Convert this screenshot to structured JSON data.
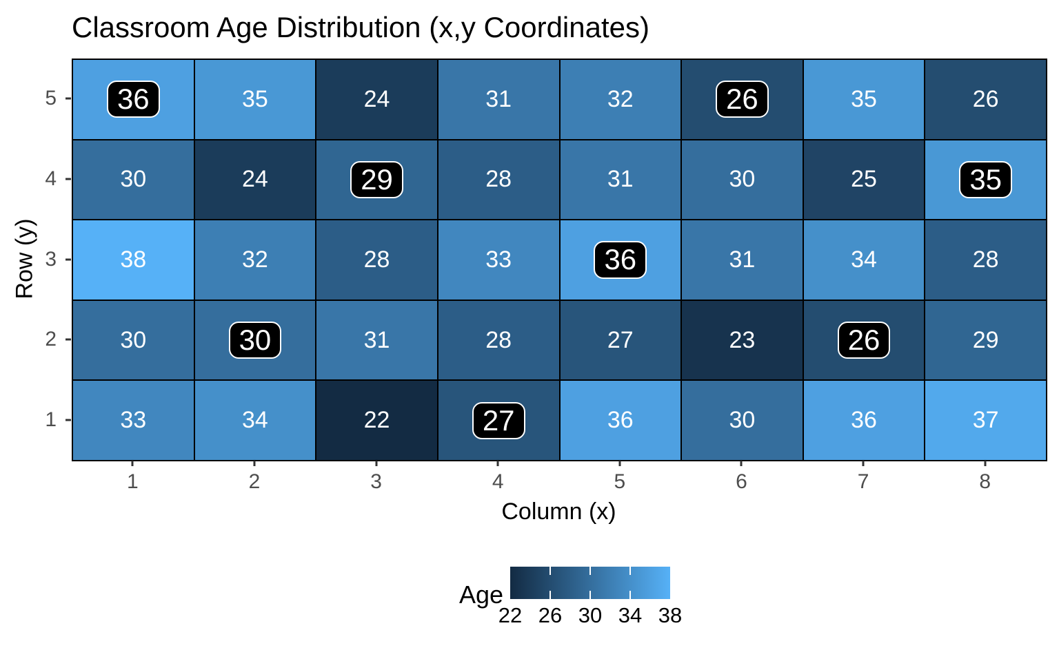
{
  "title": "Classroom Age Distribution (x,y Coordinates)",
  "axes": {
    "x_label": "Column (x)",
    "y_label": "Row (y)",
    "x_ticks": [
      "1",
      "2",
      "3",
      "4",
      "5",
      "6",
      "7",
      "8"
    ],
    "y_ticks": [
      "5",
      "4",
      "3",
      "2",
      "1"
    ]
  },
  "legend": {
    "title": "Age",
    "tick_labels": [
      "22",
      "26",
      "30",
      "34",
      "38"
    ],
    "notch_positions_pct": [
      25,
      50,
      75
    ]
  },
  "colors": {
    "fill_low": "#132B43",
    "fill_high": "#56B1F7",
    "cell_text": "#FFFFFF",
    "cell_border": "#000000",
    "highlight_bg": "#000000",
    "highlight_border": "#FFFFFF",
    "highlight_text": "#FFFFFF",
    "axis_tick_label": "#4D4D4D",
    "axis_tick_mark": "#333333",
    "title_text": "#000000"
  },
  "chart_data": {
    "type": "heatmap",
    "title": "Classroom Age Distribution (x,y Coordinates)",
    "xlabel": "Column (x)",
    "ylabel": "Row (y)",
    "x": [
      1,
      2,
      3,
      4,
      5,
      6,
      7,
      8
    ],
    "y": [
      1,
      2,
      3,
      4,
      5
    ],
    "fill_domain": [
      22,
      38
    ],
    "legend_title": "Age",
    "legend_ticks": [
      22,
      26,
      30,
      34,
      38
    ],
    "grid_rows_top_to_bottom": [
      {
        "y": 5,
        "values": [
          36,
          35,
          24,
          31,
          32,
          26,
          35,
          26
        ]
      },
      {
        "y": 4,
        "values": [
          30,
          24,
          29,
          28,
          31,
          30,
          25,
          35
        ]
      },
      {
        "y": 3,
        "values": [
          38,
          32,
          28,
          33,
          36,
          31,
          34,
          28
        ]
      },
      {
        "y": 2,
        "values": [
          30,
          30,
          31,
          28,
          27,
          23,
          26,
          29
        ]
      },
      {
        "y": 1,
        "values": [
          33,
          34,
          22,
          27,
          36,
          30,
          36,
          37
        ]
      }
    ],
    "highlighted_cells": [
      {
        "x": 1,
        "y": 5,
        "value": 36
      },
      {
        "x": 6,
        "y": 5,
        "value": 26
      },
      {
        "x": 3,
        "y": 4,
        "value": 29
      },
      {
        "x": 8,
        "y": 4,
        "value": 35
      },
      {
        "x": 5,
        "y": 3,
        "value": 36
      },
      {
        "x": 2,
        "y": 2,
        "value": 30
      },
      {
        "x": 7,
        "y": 2,
        "value": 26
      },
      {
        "x": 4,
        "y": 1,
        "value": 27
      }
    ]
  }
}
